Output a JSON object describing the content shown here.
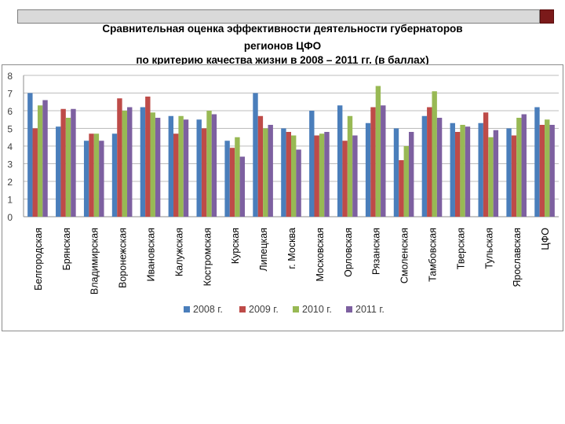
{
  "chart_data": {
    "type": "bar",
    "title_lines": [
      "Сравнительная оценка эффективности деятельности губернаторов",
      "регионов ЦФО",
      "по критерию качества жизни в   2008 – 2011 гг. (в баллах)"
    ],
    "categories": [
      "Белгородская",
      "Брянская",
      "Владимирская",
      "Воронежская",
      "Ивановская",
      "Калужская",
      "Костромская",
      "Курская",
      "Липецкая",
      "г. Москва",
      "Московская",
      "Орловская",
      "Рязанская",
      "Смоленская",
      "Тамбовская",
      "Тверская",
      "Тульская",
      "Ярославская",
      "ЦФО"
    ],
    "series": [
      {
        "name": "2008 г.",
        "color": "#4a7ebb",
        "values": [
          7.0,
          5.1,
          4.3,
          4.7,
          6.2,
          5.7,
          5.5,
          4.3,
          7.0,
          5.0,
          6.0,
          6.3,
          5.3,
          5.0,
          5.7,
          5.3,
          5.3,
          5.0,
          6.2
        ]
      },
      {
        "name": "2009 г.",
        "color": "#be4b48",
        "values": [
          5.0,
          6.1,
          4.7,
          6.7,
          6.8,
          4.7,
          5.0,
          3.9,
          5.7,
          4.8,
          4.6,
          4.3,
          6.2,
          3.2,
          6.2,
          4.8,
          5.9,
          4.6,
          5.2
        ]
      },
      {
        "name": "2010 г.",
        "color": "#98b954",
        "values": [
          6.3,
          5.6,
          4.7,
          6.0,
          5.9,
          5.7,
          6.0,
          4.5,
          5.0,
          4.6,
          4.7,
          5.7,
          7.4,
          4.0,
          7.1,
          5.2,
          4.5,
          5.6,
          5.5
        ]
      },
      {
        "name": "2011 г.",
        "color": "#7d60a0",
        "values": [
          6.6,
          6.1,
          4.3,
          6.2,
          5.6,
          5.5,
          5.8,
          3.4,
          5.2,
          3.8,
          4.8,
          4.6,
          6.3,
          4.8,
          5.6,
          5.1,
          4.9,
          5.8,
          5.2
        ]
      }
    ],
    "ylim": [
      0,
      8
    ],
    "yticks": [
      "0",
      "1",
      "2",
      "3",
      "4",
      "5",
      "6",
      "7",
      "8"
    ],
    "grid": true,
    "legend_position": "bottom"
  }
}
